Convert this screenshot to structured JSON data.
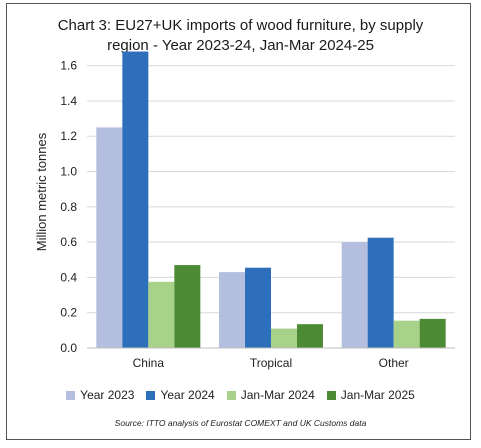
{
  "chart_data": {
    "type": "bar",
    "title_lines": [
      "Chart 3: EU27+UK imports of wood furniture, by supply",
      "region - Year 2023-24, Jan-Mar 2024-25"
    ],
    "xlabel": "",
    "ylabel": "Million metric tonnes",
    "categories": [
      "China",
      "Tropical",
      "Other"
    ],
    "ylim": [
      0,
      1.7
    ],
    "yticks": [
      "0.0",
      "0.2",
      "0.4",
      "0.6",
      "0.8",
      "1.0",
      "1.2",
      "1.4",
      "1.6"
    ],
    "grid": true,
    "legend_position": "bottom",
    "series": [
      {
        "name": "Year 2023",
        "color": "#b4bfe0",
        "values": [
          1.25,
          0.43,
          0.6
        ]
      },
      {
        "name": "Year 2024",
        "color": "#2e6fbb",
        "values": [
          1.68,
          0.455,
          0.625
        ]
      },
      {
        "name": "Jan-Mar 2024",
        "color": "#a8d28a",
        "values": [
          0.375,
          0.11,
          0.155
        ]
      },
      {
        "name": "Jan-Mar 2025",
        "color": "#4c8a34",
        "values": [
          0.47,
          0.135,
          0.165
        ]
      }
    ],
    "source": "Source: ITTO analysis of Eurostat COMEXT and UK Customs data"
  }
}
